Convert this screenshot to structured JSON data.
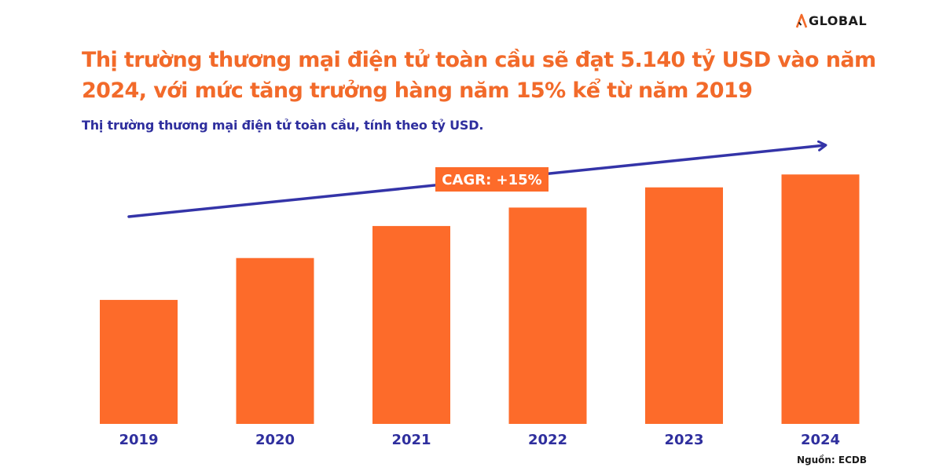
{
  "brand": {
    "name": "GLOBAL",
    "icon": "aglobal-logo-icon"
  },
  "colors": {
    "accent": "#f26a2a",
    "bar": "#fd6b2a",
    "trend": "#3434a8",
    "subtitle": "#2f2f9e"
  },
  "chart_data": {
    "type": "bar",
    "title": "Thị trường thương mại điện tử toàn cầu sẽ đạt 5.140 tỷ USD vào năm 2024, với mức tăng trưởng hàng năm 15% kể từ năm 2019",
    "subtitle": "Thị trường thương mại điện tử toàn cầu, tính theo tỷ USD.",
    "categories": [
      "2019",
      "2020",
      "2021",
      "2022",
      "2023",
      "2024"
    ],
    "values": [
      2555,
      3418,
      4078,
      4458,
      4874,
      5140
    ],
    "ylim": [
      0,
      5500
    ],
    "grid": false,
    "annotation": "CAGR: +15%",
    "source": "Nguồn: ECDB"
  }
}
